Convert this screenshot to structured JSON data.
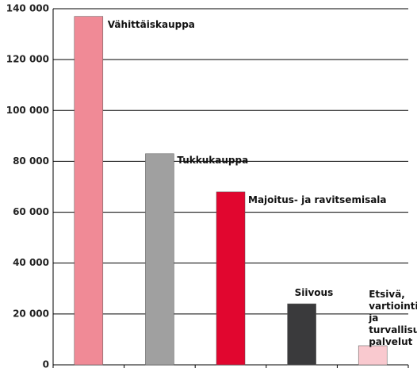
{
  "chart_data": {
    "type": "bar",
    "categories": [
      "Vähittäiskauppa",
      "Tukkukauppa",
      "Majoitus- ja ravitsemisala",
      "Siivous",
      "Etsivä,\nvartiointi-\nja turvallisuus-\npalvelut"
    ],
    "values": [
      137000,
      83000,
      68000,
      24000,
      7500
    ],
    "colors": [
      "#f08a96",
      "#a0a0a0",
      "#e1062f",
      "#3a3a3c",
      "#f9c9cf"
    ],
    "ylim": [
      0,
      140000
    ],
    "yticks": [
      0,
      {
        "value": 20000,
        "label": "20 000"
      },
      {
        "value": 40000,
        "label": "40 000"
      },
      {
        "value": 60000,
        "label": "60 000"
      },
      {
        "value": 80000,
        "label": "80 000"
      },
      {
        "value": 100000,
        "label": "100 000"
      },
      {
        "value": 120000,
        "label": "120 000"
      },
      {
        "value": 140000,
        "label": "140 000"
      }
    ],
    "grid": true
  }
}
